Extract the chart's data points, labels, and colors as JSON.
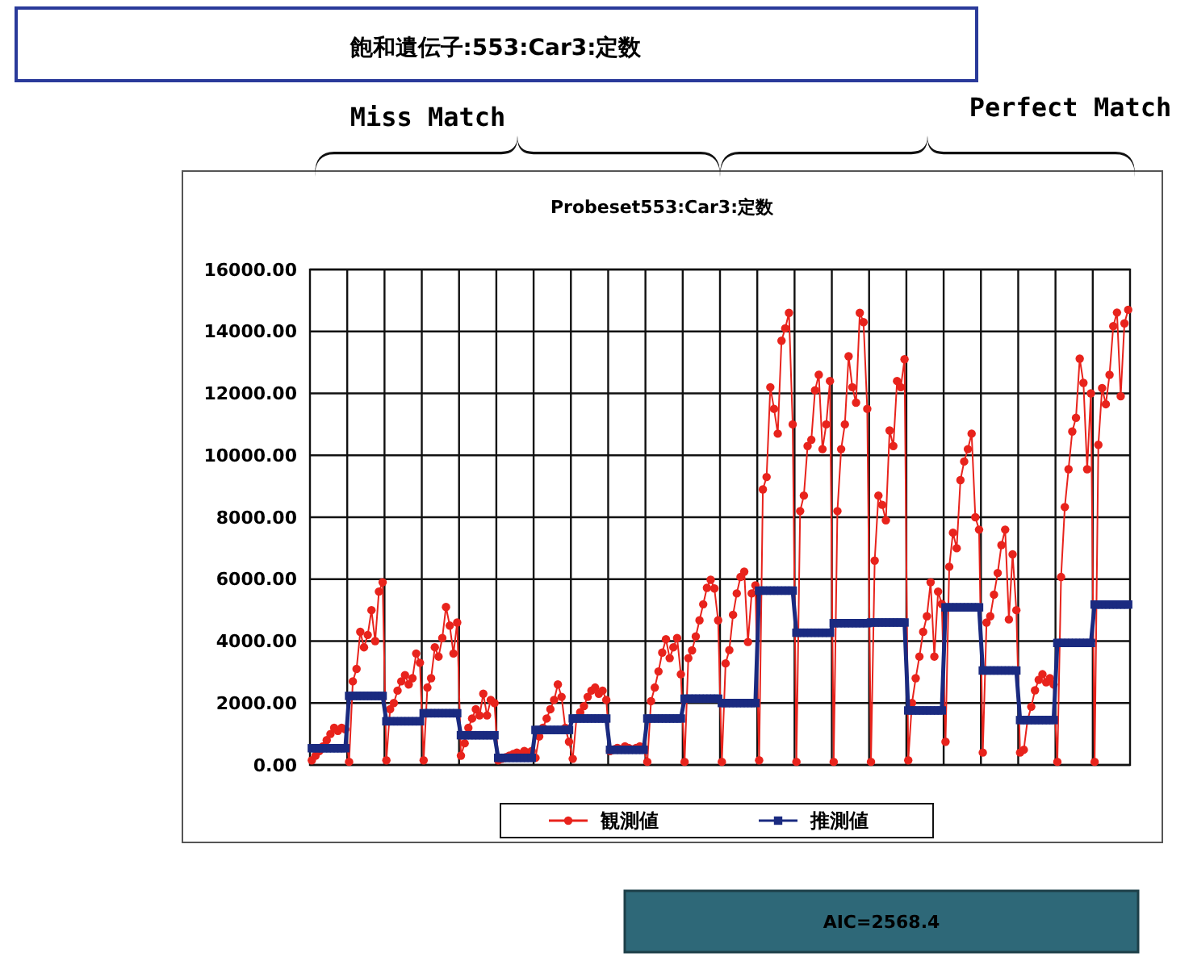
{
  "chart_data": {
    "type": "line",
    "title": "飽和遺伝子:553:Car3:定数",
    "subtitle": "Probeset553:Car3:定数",
    "annotations": [
      "Miss Match",
      "Perfect Match",
      "AIC=2568.4"
    ],
    "categories": [
      null,
      null,
      null,
      null,
      null,
      null,
      null,
      null,
      null,
      null,
      null,
      null,
      null,
      null,
      null,
      null,
      null,
      null,
      null,
      null,
      null,
      null,
      null,
      null,
      null,
      null,
      null,
      null,
      null,
      null,
      null,
      null,
      null,
      null,
      null,
      null,
      null,
      null,
      null,
      null,
      null,
      null,
      null,
      null,
      null,
      null,
      null,
      null,
      null,
      null,
      null,
      null,
      null,
      null,
      null,
      null,
      null,
      null,
      null,
      null,
      null,
      null,
      null,
      null,
      null,
      null,
      null,
      null,
      null,
      null,
      null,
      null,
      null,
      null,
      null,
      null,
      null,
      null,
      null,
      null,
      null,
      null,
      null,
      null,
      null,
      null,
      null,
      null,
      null,
      null,
      null,
      null,
      null,
      null,
      null,
      null,
      null,
      null,
      null,
      null,
      null,
      null,
      null,
      null,
      null,
      null,
      null,
      null,
      null,
      null,
      null,
      null,
      null,
      null,
      null,
      null,
      null,
      null,
      null,
      null,
      null,
      null,
      null,
      null,
      null,
      null,
      null,
      null,
      null,
      null,
      null,
      null,
      null,
      null,
      null,
      null,
      null,
      null,
      null,
      null,
      null,
      null,
      null,
      null,
      null,
      null,
      null,
      null,
      null,
      null,
      null,
      null,
      null,
      null,
      null,
      null,
      null,
      null,
      null,
      null,
      null,
      null,
      null,
      null,
      null,
      null,
      null,
      null,
      null,
      null,
      null,
      null,
      null,
      null,
      null,
      null,
      null,
      null,
      null,
      null,
      null,
      null,
      null,
      null,
      null,
      null,
      null,
      null,
      null,
      null,
      null,
      null,
      null,
      null,
      null,
      null,
      null,
      null,
      null,
      null,
      null,
      null,
      null,
      null,
      null,
      null,
      null,
      null,
      null,
      null,
      null,
      null,
      null,
      null,
      null,
      null,
      null,
      null,
      null,
      null
    ],
    "series": [
      {
        "name": "観測値",
        "color": "#e8231c",
        "marker": "circle",
        "values": [
          150,
          300,
          450,
          600,
          800,
          1000,
          1200,
          1100,
          1200,
          1150,
          100,
          2700,
          3100,
          4300,
          3800,
          4200,
          5000,
          4000,
          5600,
          5900,
          150,
          1800,
          2000,
          2400,
          2700,
          2900,
          2600,
          2800,
          3600,
          3300,
          150,
          2500,
          2800,
          3800,
          3500,
          4100,
          5100,
          4500,
          3600,
          4600,
          300,
          700,
          1200,
          1500,
          1800,
          1600,
          2300,
          1600,
          2100,
          2000,
          150,
          200,
          250,
          300,
          350,
          400,
          350,
          450,
          400,
          450,
          230,
          920,
          1200,
          1500,
          1800,
          2100,
          2600,
          2200,
          1200,
          750,
          200,
          1500,
          1700,
          1900,
          2200,
          2400,
          2500,
          2300,
          2400,
          2100,
          450,
          500,
          550,
          500,
          600,
          550,
          500,
          550,
          600,
          500,
          100,
          2060,
          2500,
          3020,
          3630,
          4060,
          3450,
          3800,
          4100,
          2930,
          100,
          3450,
          3700,
          4150,
          4670,
          5190,
          5720,
          5980,
          5700,
          4670,
          100,
          3280,
          3710,
          4850,
          5540,
          6070,
          6240,
          3970,
          5540,
          5800,
          150,
          8900,
          9300,
          12200,
          11500,
          10700,
          13700,
          14100,
          14600,
          11000,
          100,
          8200,
          8700,
          10300,
          10500,
          12100,
          12600,
          10200,
          11000,
          12400,
          100,
          8200,
          10200,
          11000,
          13200,
          12200,
          11700,
          14600,
          14300,
          11500,
          100,
          6600,
          8700,
          8400,
          7900,
          10800,
          10300,
          12400,
          12200,
          13100,
          150,
          2000,
          2800,
          3500,
          4300,
          4800,
          5900,
          3500,
          5600,
          5200,
          750,
          6400,
          7500,
          7000,
          9200,
          9800,
          10200,
          10700,
          8000,
          7600,
          400,
          4600,
          4800,
          5500,
          6200,
          7100,
          7600,
          4700,
          6800,
          5000,
          400,
          490,
          1450,
          1880,
          2410,
          2750,
          2930,
          2670,
          2800,
          2600,
          100,
          6070,
          8330,
          9550,
          10770,
          11210,
          13120,
          12340,
          9550,
          12000,
          100,
          10340,
          12170,
          11650,
          12600,
          14170,
          14610,
          11910,
          14260,
          14700
        ]
      },
      {
        "name": "推測値",
        "color": "#1a2a80",
        "marker": "square",
        "values": [
          540,
          540,
          540,
          540,
          540,
          540,
          540,
          540,
          540,
          540,
          2230,
          2230,
          2230,
          2230,
          2230,
          2230,
          2230,
          2230,
          2230,
          2230,
          1410,
          1410,
          1410,
          1410,
          1410,
          1410,
          1410,
          1410,
          1410,
          1410,
          1670,
          1670,
          1670,
          1670,
          1670,
          1670,
          1670,
          1670,
          1670,
          1670,
          960,
          960,
          960,
          960,
          960,
          960,
          960,
          960,
          960,
          960,
          230,
          230,
          230,
          230,
          230,
          230,
          230,
          230,
          230,
          230,
          1130,
          1130,
          1130,
          1130,
          1130,
          1130,
          1130,
          1130,
          1130,
          1130,
          1500,
          1500,
          1500,
          1500,
          1500,
          1500,
          1500,
          1500,
          1500,
          1500,
          490,
          490,
          490,
          490,
          490,
          490,
          490,
          490,
          490,
          490,
          1500,
          1500,
          1500,
          1500,
          1500,
          1500,
          1500,
          1500,
          1500,
          1500,
          2140,
          2140,
          2140,
          2140,
          2140,
          2140,
          2140,
          2140,
          2140,
          2140,
          2000,
          2000,
          2000,
          2000,
          2000,
          2000,
          2000,
          2000,
          2000,
          2000,
          5630,
          5630,
          5630,
          5630,
          5630,
          5630,
          5630,
          5630,
          5630,
          5630,
          4270,
          4270,
          4270,
          4270,
          4270,
          4270,
          4270,
          4270,
          4270,
          4270,
          4580,
          4580,
          4580,
          4580,
          4580,
          4580,
          4580,
          4580,
          4580,
          4580,
          4600,
          4600,
          4600,
          4600,
          4600,
          4600,
          4600,
          4600,
          4600,
          4600,
          1760,
          1760,
          1760,
          1760,
          1760,
          1760,
          1760,
          1760,
          1760,
          1760,
          5090,
          5090,
          5090,
          5090,
          5090,
          5090,
          5090,
          5090,
          5090,
          5090,
          3050,
          3050,
          3050,
          3050,
          3050,
          3050,
          3050,
          3050,
          3050,
          3050,
          1450,
          1450,
          1450,
          1450,
          1450,
          1450,
          1450,
          1450,
          1450,
          1450,
          3940,
          3940,
          3940,
          3940,
          3940,
          3940,
          3940,
          3940,
          3940,
          3940,
          5180,
          5180,
          5180,
          5180,
          5180,
          5180,
          5180,
          5180,
          5180,
          5180
        ]
      }
    ],
    "ylim": [
      0,
      16000
    ],
    "yticks": [
      {
        "value": 0,
        "label": "0.00"
      },
      {
        "value": 2000,
        "label": "2000.00"
      },
      {
        "value": 4000,
        "label": "4000.00"
      },
      {
        "value": 6000,
        "label": "6000.00"
      },
      {
        "value": 8000,
        "label": "8000.00"
      },
      {
        "value": 10000,
        "label": "10000.00"
      },
      {
        "value": 12000,
        "label": "12000.00"
      },
      {
        "value": 14000,
        "label": "14000.00"
      },
      {
        "value": 16000,
        "label": "16000.00"
      }
    ],
    "tick_labels": "y",
    "grid": true,
    "legend": "bottom",
    "line_style": "solid"
  }
}
